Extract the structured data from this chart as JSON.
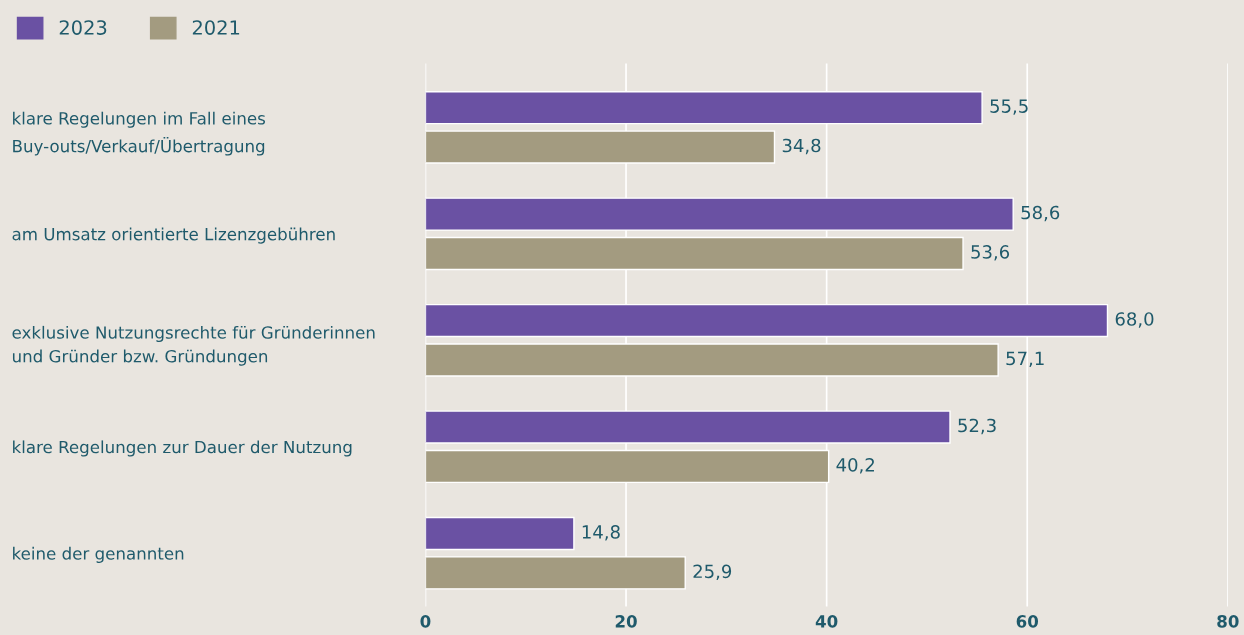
{
  "chart_data": {
    "type": "bar",
    "orientation": "horizontal",
    "categories": [
      "klare Regelungen im Fall eines\nBuy-outs/Verkauf/Übertragung",
      "am Umsatz orientierte Lizenzgebühren",
      "exklusive Nutzungsrechte für Gründerinnen\nund Gründer bzw. Gründungen",
      "klare Regelungen zur Dauer der Nutzung",
      "keine der genannten"
    ],
    "series": [
      {
        "name": "2023",
        "color": "#6a51a3",
        "values": [
          55.5,
          58.6,
          68.0,
          52.3,
          14.8
        ],
        "value_labels": [
          "55,5",
          "58,6",
          "68,0",
          "52,3",
          "14,8"
        ]
      },
      {
        "name": "2021",
        "color": "#a39b80",
        "values": [
          34.8,
          53.6,
          57.1,
          40.2,
          25.9
        ],
        "value_labels": [
          "34,8",
          "53,6",
          "57,1",
          "40,2",
          "25,9"
        ]
      }
    ],
    "xlim": [
      0,
      80
    ],
    "xticks": [
      0,
      20,
      40,
      60,
      80
    ],
    "grid": "x",
    "legend": "top left"
  }
}
